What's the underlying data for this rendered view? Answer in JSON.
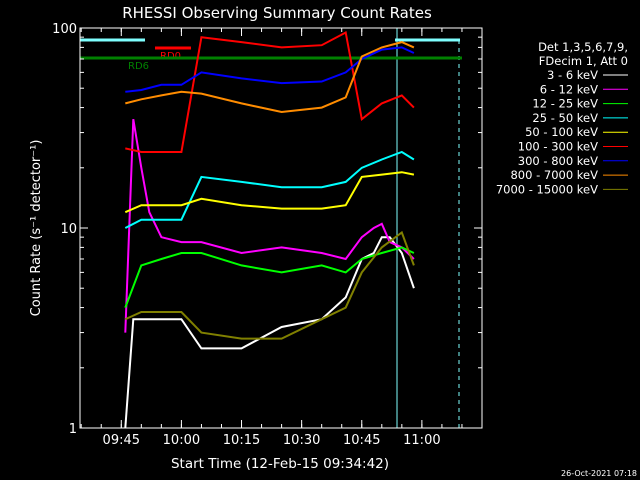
{
  "chart_data": {
    "type": "line",
    "title": "RHESSI Observing Summary Count Rates",
    "xlabel": "Start Time (12-Feb-15 09:34:42)",
    "ylabel": "Count Rate (s⁻¹ detector⁻¹)",
    "y_scale": "log",
    "ylim": [
      1,
      100
    ],
    "y_ticks": [
      "1",
      "10",
      "100"
    ],
    "x_ticks": [
      "09:45",
      "10:00",
      "10:15",
      "10:30",
      "10:45",
      "11:00"
    ],
    "xlim": [
      "09:34:42",
      "11:15:00"
    ],
    "footer": "26-Oct-2021 07:18",
    "legend_header": [
      "Det 1,3,5,6,7,9,",
      "FDecim 1, Att 0"
    ],
    "flags": [
      {
        "label": "RD0",
        "color": "#ff0000"
      },
      {
        "label": "RD6",
        "color": "#008000"
      }
    ],
    "series": [
      {
        "name": "3 - 6 keV",
        "color": "#ffffff",
        "x": [
          "09:46",
          "09:48",
          "09:50",
          "09:55",
          "10:00",
          "10:05",
          "10:15",
          "10:25",
          "10:35",
          "10:41",
          "10:45",
          "10:48",
          "10:50",
          "10:52",
          "10:55",
          "10:58"
        ],
        "y": [
          1,
          3.5,
          3.5,
          3.5,
          3.5,
          2.5,
          2.5,
          3.2,
          3.5,
          4.5,
          7,
          7.5,
          9,
          9,
          7.5,
          5
        ]
      },
      {
        "name": "6 - 12 keV",
        "color": "#ff00ff",
        "x": [
          "09:46",
          "09:48",
          "09:50",
          "09:52",
          "09:55",
          "10:00",
          "10:05",
          "10:15",
          "10:25",
          "10:35",
          "10:41",
          "10:45",
          "10:48",
          "10:50",
          "10:52",
          "10:55",
          "10:58"
        ],
        "y": [
          3,
          35,
          20,
          12,
          9,
          8.5,
          8.5,
          7.5,
          8,
          7.5,
          7,
          9,
          10,
          10.5,
          8.5,
          8,
          7
        ]
      },
      {
        "name": "12 - 25 keV",
        "color": "#00ff00",
        "x": [
          "09:46",
          "09:50",
          "09:55",
          "10:00",
          "10:05",
          "10:15",
          "10:25",
          "10:35",
          "10:41",
          "10:45",
          "10:50",
          "10:55",
          "10:58"
        ],
        "y": [
          4,
          6.5,
          7,
          7.5,
          7.5,
          6.5,
          6,
          6.5,
          6,
          7,
          7.5,
          8,
          7.5
        ]
      },
      {
        "name": "25 - 50 keV",
        "color": "#00ffff",
        "x": [
          "09:46",
          "09:50",
          "09:55",
          "10:00",
          "10:05",
          "10:15",
          "10:25",
          "10:35",
          "10:41",
          "10:45",
          "10:50",
          "10:55",
          "10:58"
        ],
        "y": [
          10,
          11,
          11,
          11,
          18,
          17,
          16,
          16,
          17,
          20,
          22,
          24,
          22
        ]
      },
      {
        "name": "50 - 100 keV",
        "color": "#ffff00",
        "x": [
          "09:46",
          "09:50",
          "09:55",
          "10:00",
          "10:05",
          "10:15",
          "10:25",
          "10:35",
          "10:41",
          "10:45",
          "10:50",
          "10:55",
          "10:58"
        ],
        "y": [
          12,
          13,
          13,
          13,
          14,
          13,
          12.5,
          12.5,
          13,
          18,
          18.5,
          19,
          18.5
        ]
      },
      {
        "name": "100 - 300 keV",
        "color": "#ff0000",
        "x": [
          "09:46",
          "09:50",
          "09:55",
          "10:00",
          "10:05",
          "10:15",
          "10:25",
          "10:35",
          "10:41",
          "10:45",
          "10:50",
          "10:55",
          "10:58"
        ],
        "y": [
          25,
          24,
          24,
          24,
          90,
          85,
          80,
          82,
          95,
          35,
          42,
          46,
          40
        ]
      },
      {
        "name": "300 - 800 keV",
        "color": "#0000ff",
        "x": [
          "09:46",
          "09:50",
          "09:55",
          "10:00",
          "10:05",
          "10:15",
          "10:25",
          "10:35",
          "10:41",
          "10:45",
          "10:50",
          "10:55",
          "10:58"
        ],
        "y": [
          48,
          49,
          52,
          52,
          60,
          56,
          53,
          54,
          60,
          70,
          78,
          80,
          75
        ]
      },
      {
        "name": "800 - 7000 keV",
        "color": "#ff8c00",
        "x": [
          "09:46",
          "09:50",
          "09:55",
          "10:00",
          "10:05",
          "10:15",
          "10:25",
          "10:35",
          "10:41",
          "10:45",
          "10:50",
          "10:55",
          "10:58"
        ],
        "y": [
          42,
          44,
          46,
          48,
          47,
          42,
          38,
          40,
          45,
          72,
          80,
          85,
          80
        ]
      },
      {
        "name": "7000 - 15000 keV",
        "color": "#808000",
        "x": [
          "09:46",
          "09:50",
          "09:55",
          "10:00",
          "10:05",
          "10:15",
          "10:25",
          "10:35",
          "10:41",
          "10:45",
          "10:50",
          "10:55",
          "10:58"
        ],
        "y": [
          3.5,
          3.8,
          3.8,
          3.8,
          3,
          2.8,
          2.8,
          3.5,
          4,
          6,
          8,
          9.5,
          6.5
        ]
      }
    ]
  }
}
